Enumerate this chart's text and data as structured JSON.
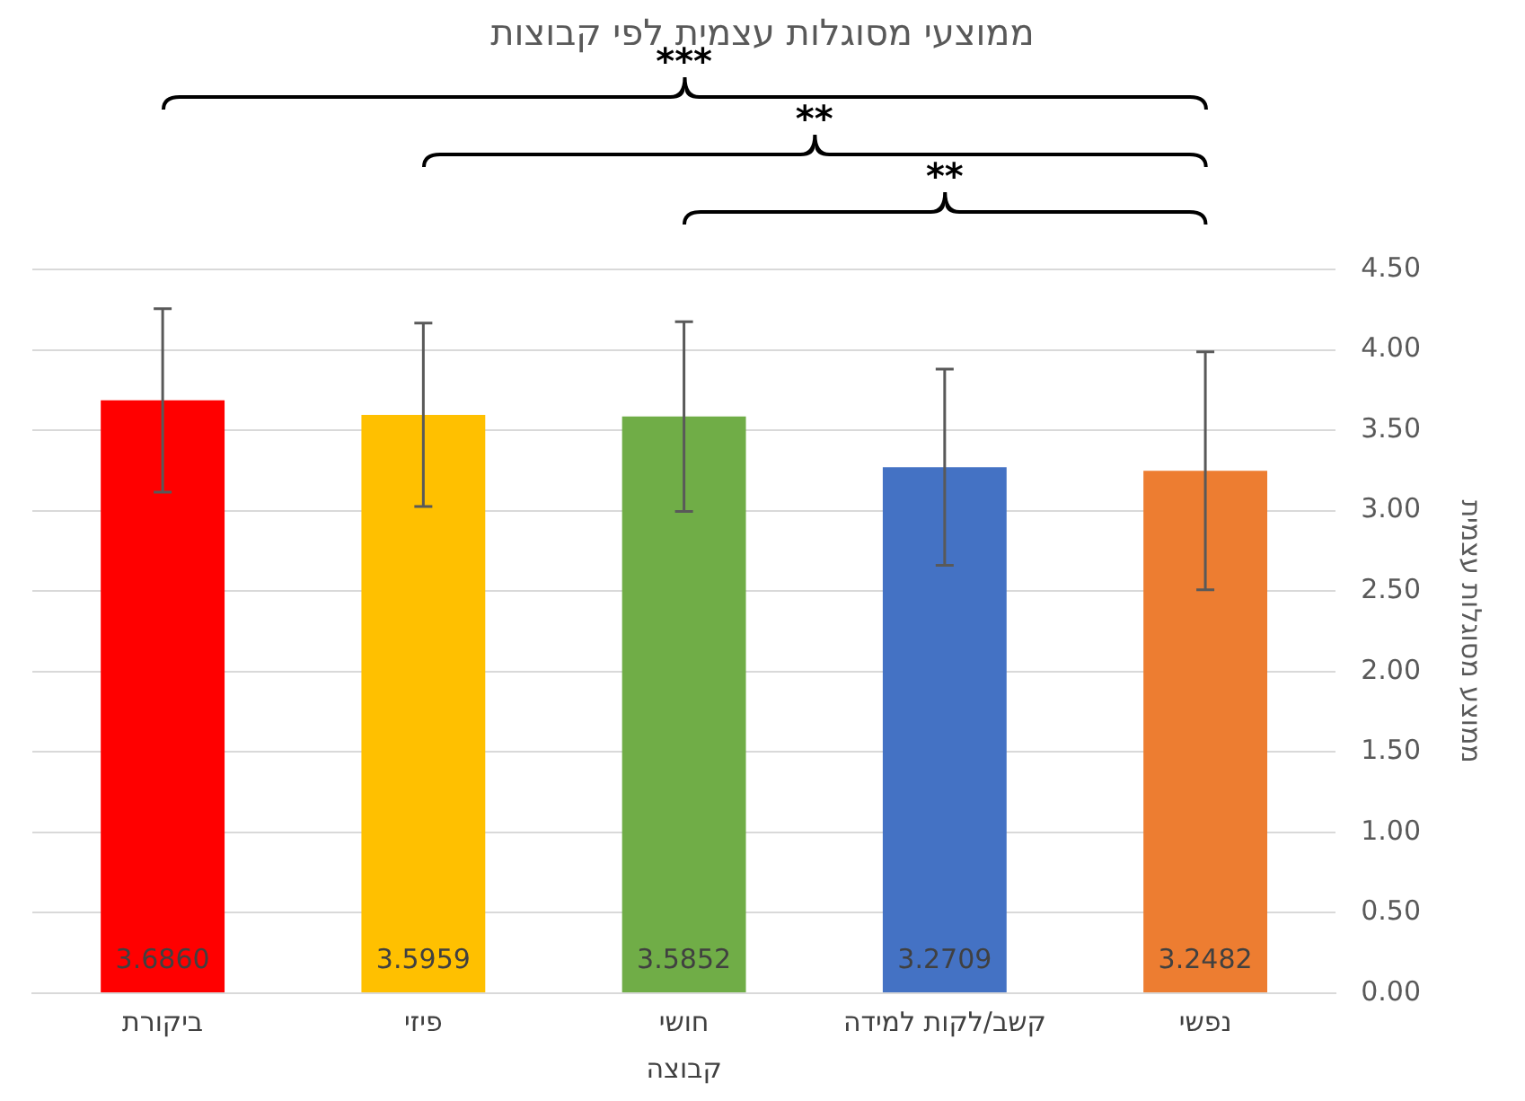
{
  "chart_data": {
    "type": "bar",
    "title": "ממוצעי מסוגלות עצמית לפי קבוצות",
    "xlabel": "קבוצה",
    "ylabel": "ממוצע מסוגלות עצמית",
    "categories": [
      "ביקורת",
      "פיזי",
      "חושי",
      "קשב/לקות למידה",
      "נפשי"
    ],
    "values": [
      3.686,
      3.5959,
      3.5852,
      3.2709,
      3.2482
    ],
    "colors": [
      "#ff0000",
      "#ffc000",
      "#70ad47",
      "#4472c4",
      "#ed7d31"
    ],
    "errors": [
      0.57,
      0.57,
      0.59,
      0.61,
      0.74
    ],
    "value_labels": [
      "3.6860",
      "3.5959",
      "3.5852",
      "3.2709",
      "3.2482"
    ],
    "ylim": [
      0,
      4.5
    ],
    "yticks": [
      {
        "value": 0,
        "label": "0.00"
      },
      {
        "value": 0.5,
        "label": "0.50"
      },
      {
        "value": 1,
        "label": "1.00"
      },
      {
        "value": 1.5,
        "label": "1.50"
      },
      {
        "value": 2,
        "label": "2.00"
      },
      {
        "value": 2.5,
        "label": "2.50"
      },
      {
        "value": 3,
        "label": "3.00"
      },
      {
        "value": 3.5,
        "label": "3.50"
      },
      {
        "value": 4,
        "label": "4.00"
      },
      {
        "value": 4.5,
        "label": "4.50"
      }
    ],
    "grid": "y",
    "legend": false,
    "annotations": [
      "***",
      "**",
      "**"
    ]
  }
}
